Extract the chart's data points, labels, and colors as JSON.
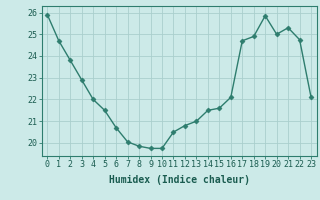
{
  "x": [
    0,
    1,
    2,
    3,
    4,
    5,
    6,
    7,
    8,
    9,
    10,
    11,
    12,
    13,
    14,
    15,
    16,
    17,
    18,
    19,
    20,
    21,
    22,
    23
  ],
  "y": [
    25.9,
    24.7,
    23.8,
    22.9,
    22.0,
    21.5,
    20.7,
    20.05,
    19.85,
    19.75,
    19.75,
    20.5,
    20.8,
    21.0,
    21.5,
    21.6,
    22.1,
    24.7,
    24.9,
    25.85,
    25.0,
    25.3,
    24.75,
    22.1
  ],
  "line_color": "#2e7d6e",
  "marker": "D",
  "marker_size": 2.5,
  "bg_color": "#cceae8",
  "grid_color": "#aacfcd",
  "xlabel": "Humidex (Indice chaleur)",
  "ylim": [
    19.4,
    26.3
  ],
  "xlim": [
    -0.5,
    23.5
  ],
  "yticks": [
    20,
    21,
    22,
    23,
    24,
    25,
    26
  ],
  "xticks": [
    0,
    1,
    2,
    3,
    4,
    5,
    6,
    7,
    8,
    9,
    10,
    11,
    12,
    13,
    14,
    15,
    16,
    17,
    18,
    19,
    20,
    21,
    22,
    23
  ],
  "xlabel_fontsize": 7.0,
  "tick_fontsize": 6.0,
  "linewidth": 1.0
}
